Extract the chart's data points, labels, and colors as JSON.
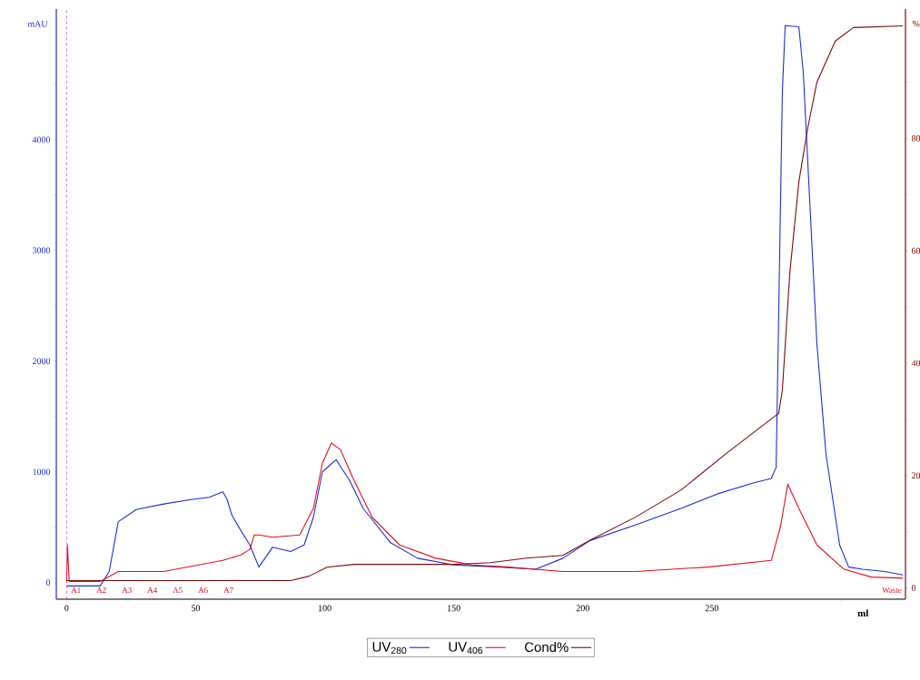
{
  "chart_data": {
    "type": "line",
    "xlabel": "ml",
    "ylabel": "mAU",
    "y2label": "%",
    "xlim": [
      -4,
      325
    ],
    "ylim": [
      -150,
      5180
    ],
    "y2lim": [
      -2,
      103
    ],
    "xticks": [
      0,
      50,
      100,
      150,
      200,
      250,
      {
        "value": 300,
        "label": null
      }
    ],
    "yticks": [
      0,
      {
        "value": 500,
        "label": null
      },
      1000,
      {
        "value": 1500,
        "label": null
      },
      2000,
      {
        "value": 2500,
        "label": null
      },
      3000,
      {
        "value": 3500,
        "label": null
      },
      4000,
      {
        "value": 4500,
        "label": null
      }
    ],
    "y2ticks": [
      0,
      {
        "value": 10,
        "label": null
      },
      20,
      {
        "value": 30,
        "label": null
      },
      40,
      {
        "value": 50,
        "label": null
      },
      60,
      {
        "value": 70,
        "label": null
      },
      80,
      {
        "value": 90,
        "label": null
      }
    ],
    "legend": "bottom",
    "ref_lines": [
      {
        "axis": "x",
        "value": 0,
        "color": "#e040c0",
        "line_style": "dashed"
      }
    ],
    "annotations": [
      "A1",
      "A2",
      "A3",
      "A4",
      "A5",
      "A6",
      "A7",
      "Waste"
    ],
    "series": [
      {
        "name": "UV$_{280}$",
        "color": "#1a2fd0",
        "x": [
          0,
          13,
          16.5,
          20,
          27,
          37.6,
          48.2,
          55.2,
          60.5,
          62.2,
          64,
          67.5,
          71,
          74.5,
          79.8,
          86.8,
          92,
          95.6,
          99.1,
          104.4,
          109.7,
          114.9,
          125.5,
          136,
          150,
          167.7,
          181.7,
          192.3,
          202.8,
          220.4,
          238,
          252,
          266,
          273,
          274.9,
          277.3,
          278.4,
          283.7,
          285.4,
          290.7,
          294.2,
          299.5,
          303,
          308.3,
          317,
          324
        ],
        "values": [
          -30,
          -30,
          100,
          550,
          660,
          710,
          750,
          770,
          820,
          750,
          610,
          470,
          340,
          140,
          320,
          280,
          340,
          590,
          1000,
          1110,
          920,
          670,
          360,
          220,
          160,
          140,
          120,
          220,
          380,
          520,
          670,
          800,
          900,
          940,
          1040,
          4440,
          5030,
          5020,
          4610,
          2150,
          1160,
          340,
          140,
          120,
          100,
          70
        ]
      },
      {
        "name": "UV$_{406}$",
        "color": "#e0101a",
        "x": [
          0,
          0.3,
          1,
          13,
          20,
          37.6,
          60.5,
          67.5,
          71,
          72.7,
          74.5,
          79.8,
          90.3,
          95.6,
          99.1,
          102.6,
          106.1,
          111.4,
          118.4,
          129,
          143,
          157.1,
          171.2,
          192.3,
          220.4,
          248.4,
          273,
          276.6,
          279.4,
          283.7,
          290.7,
          301.2,
          311.8,
          324
        ],
        "values": [
          0,
          340,
          10,
          10,
          100,
          100,
          200,
          250,
          300,
          430,
          430,
          410,
          430,
          670,
          1080,
          1260,
          1200,
          920,
          590,
          340,
          220,
          160,
          140,
          100,
          100,
          140,
          200,
          510,
          890,
          670,
          340,
          120,
          50,
          40
        ]
      },
      {
        "name": "Cond%",
        "color": "#7a0a0a",
        "axis": "y2",
        "x": [
          0,
          79.8,
          86.8,
          93.9,
          100.9,
          111.4,
          150,
          164.2,
          178.2,
          192.3,
          202.8,
          220.4,
          238,
          255.5,
          275.9,
          277.3,
          280.2,
          283.7,
          287.2,
          290.7,
          297.8,
          304.8,
          324
        ],
        "values": [
          1.3,
          1.3,
          1.3,
          2.1,
          3.7,
          4.2,
          4.2,
          4.5,
          5.3,
          5.8,
          8.5,
          12.6,
          17.4,
          23.9,
          31.1,
          35.2,
          56.1,
          72.3,
          82,
          90,
          97.3,
          99.7,
          100
        ]
      }
    ]
  }
}
